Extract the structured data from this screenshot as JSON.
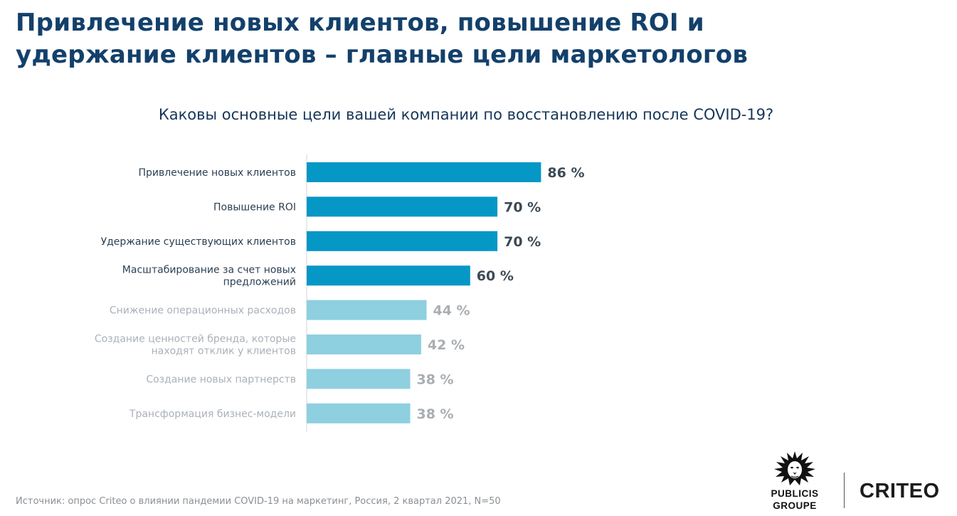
{
  "header": {
    "title_line1": "Привлечение новых клиентов, повышение ROI и",
    "title_line2": "удержание клиентов – главные цели маркетологов"
  },
  "question": "Каковы основные цели вашей компании по восстановлению после COVID-19?",
  "chart_data": {
    "type": "bar",
    "orientation": "horizontal",
    "categories": [
      [
        "Привлечение новых клиентов"
      ],
      [
        "Повышение ROI"
      ],
      [
        "Удержание существующих клиентов"
      ],
      [
        "Масштабирование за счет новых",
        "предложений"
      ],
      [
        "Снижение операционных расходов"
      ],
      [
        "Создание ценностей бренда, которые",
        "находят отклик у клиентов"
      ],
      [
        "Создание новых партнерств"
      ],
      [
        "Трансформация бизнес-модели"
      ]
    ],
    "values": [
      86,
      70,
      70,
      60,
      44,
      42,
      38,
      38
    ],
    "value_labels": [
      "86 %",
      "70 %",
      "70 %",
      "60 %",
      "44 %",
      "42 %",
      "38 %",
      "38 %"
    ],
    "highlighted_count": 4,
    "xlim": [
      0,
      100
    ],
    "colors": {
      "bar_highlight": "#0597c6",
      "bar_muted": "#8ecfe0",
      "label_highlight": "#2b3f52",
      "label_muted": "#aab1b8",
      "value_highlight": "#3d4a56",
      "value_muted": "#a9aeb3",
      "axis": "#d0d4d8"
    }
  },
  "source": "Источник: опрос Criteo о влиянии пандемии COVID-19 на маркетинг, Россия, 2 квартал 2021, N=50",
  "logos": {
    "publicis_line1": "PUBLICIS",
    "publicis_line2": "GROUPE",
    "criteo": "CRITEO"
  }
}
